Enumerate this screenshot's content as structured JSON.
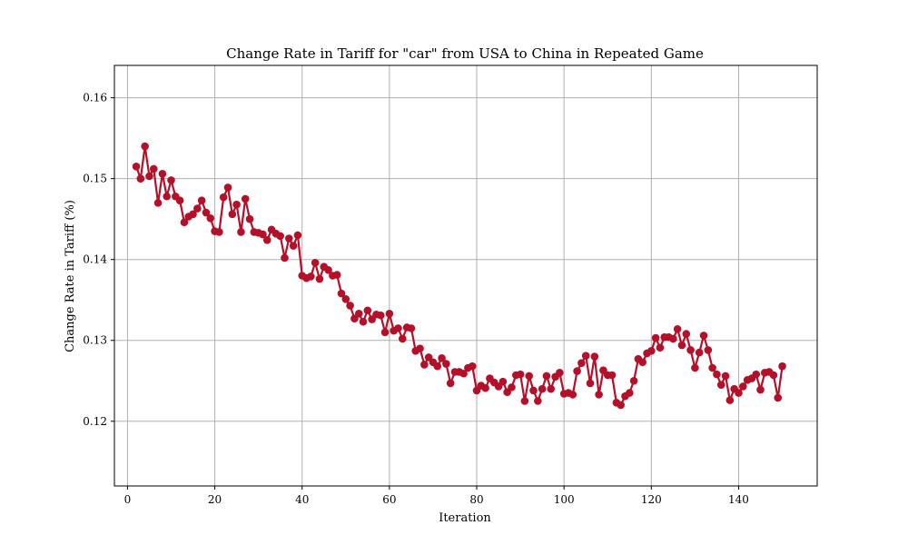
{
  "chart_data": {
    "type": "line",
    "title": "Change Rate in Tariff for \"car\" from USA to China in Repeated Game",
    "xlabel": "Iteration",
    "ylabel": "Change Rate in Tariff (%)",
    "xlim": [
      -3,
      158
    ],
    "ylim": [
      0.112,
      0.164
    ],
    "xticks": [
      0,
      20,
      40,
      60,
      80,
      100,
      120,
      140
    ],
    "yticks": [
      0.12,
      0.13,
      0.14,
      0.15,
      0.16
    ],
    "ytick_labels": [
      "0.12",
      "0.13",
      "0.14",
      "0.15",
      "0.16"
    ],
    "grid": true,
    "colors": {
      "series": "#b5102a"
    },
    "series": [
      {
        "x": [
          2,
          3,
          4,
          5,
          6,
          7,
          8,
          9,
          10,
          11,
          12,
          13,
          14,
          15,
          16,
          17,
          18,
          19,
          20,
          21,
          22,
          23,
          24,
          25,
          26,
          27,
          28,
          29,
          30,
          31,
          32,
          33,
          34,
          35,
          36,
          37,
          38,
          39,
          40,
          41,
          42,
          43,
          44,
          45,
          46,
          47,
          48,
          49,
          50,
          51,
          52,
          53,
          54,
          55,
          56,
          57,
          58,
          59,
          60,
          61,
          62,
          63,
          64,
          65,
          66,
          67,
          68,
          69,
          70,
          71,
          72,
          73,
          74,
          75,
          76,
          77,
          78,
          79,
          80,
          81,
          82,
          83,
          84,
          85,
          86,
          87,
          88,
          89,
          90,
          91,
          92,
          93,
          94,
          95,
          96,
          97,
          98,
          99,
          100,
          101,
          102,
          103,
          104,
          105,
          106,
          107,
          108,
          109,
          110,
          111,
          112,
          113,
          114,
          115,
          116,
          117,
          118,
          119,
          120,
          121,
          122,
          123,
          124,
          125,
          126,
          127,
          128,
          129,
          130,
          131,
          132,
          133,
          134,
          135,
          136,
          137,
          138,
          139,
          140,
          141,
          142,
          143,
          144,
          145,
          146,
          147,
          148,
          149,
          150
        ],
        "y": [
          0.1515,
          0.15,
          0.154,
          0.1503,
          0.1512,
          0.147,
          0.1506,
          0.1478,
          0.1498,
          0.1478,
          0.1473,
          0.1446,
          0.1453,
          0.1456,
          0.1463,
          0.1473,
          0.1458,
          0.1451,
          0.1435,
          0.1434,
          0.1477,
          0.1489,
          0.1456,
          0.1468,
          0.1434,
          0.1475,
          0.145,
          0.1434,
          0.1433,
          0.1431,
          0.1424,
          0.1437,
          0.1432,
          0.1429,
          0.1402,
          0.1426,
          0.1417,
          0.143,
          0.138,
          0.1377,
          0.1379,
          0.1396,
          0.1376,
          0.1391,
          0.1387,
          0.138,
          0.1381,
          0.1358,
          0.1351,
          0.1343,
          0.1327,
          0.1333,
          0.1323,
          0.1337,
          0.1326,
          0.1332,
          0.1331,
          0.131,
          0.1333,
          0.1312,
          0.1315,
          0.1302,
          0.1316,
          0.1315,
          0.1287,
          0.129,
          0.127,
          0.1279,
          0.1273,
          0.1268,
          0.1278,
          0.1271,
          0.1247,
          0.1261,
          0.1261,
          0.1259,
          0.1266,
          0.1268,
          0.1238,
          0.1244,
          0.1241,
          0.1253,
          0.1248,
          0.1243,
          0.1249,
          0.1236,
          0.1242,
          0.1257,
          0.1258,
          0.1225,
          0.1256,
          0.1238,
          0.1225,
          0.124,
          0.1256,
          0.124,
          0.1255,
          0.126,
          0.1234,
          0.1235,
          0.1233,
          0.1262,
          0.1272,
          0.1281,
          0.1247,
          0.128,
          0.1233,
          0.1263,
          0.1257,
          0.1257,
          0.1223,
          0.122,
          0.1231,
          0.1235,
          0.125,
          0.1277,
          0.1273,
          0.1284,
          0.1287,
          0.1303,
          0.1291,
          0.1304,
          0.1304,
          0.1302,
          0.1314,
          0.1294,
          0.1308,
          0.1288,
          0.1266,
          0.1285,
          0.1306,
          0.1288,
          0.1266,
          0.1258,
          0.1245,
          0.1256,
          0.1226,
          0.124,
          0.1235,
          0.1243,
          0.1251,
          0.1253,
          0.1258,
          0.1239,
          0.126,
          0.1261,
          0.1257,
          0.1229,
          0.1268
        ]
      }
    ]
  }
}
